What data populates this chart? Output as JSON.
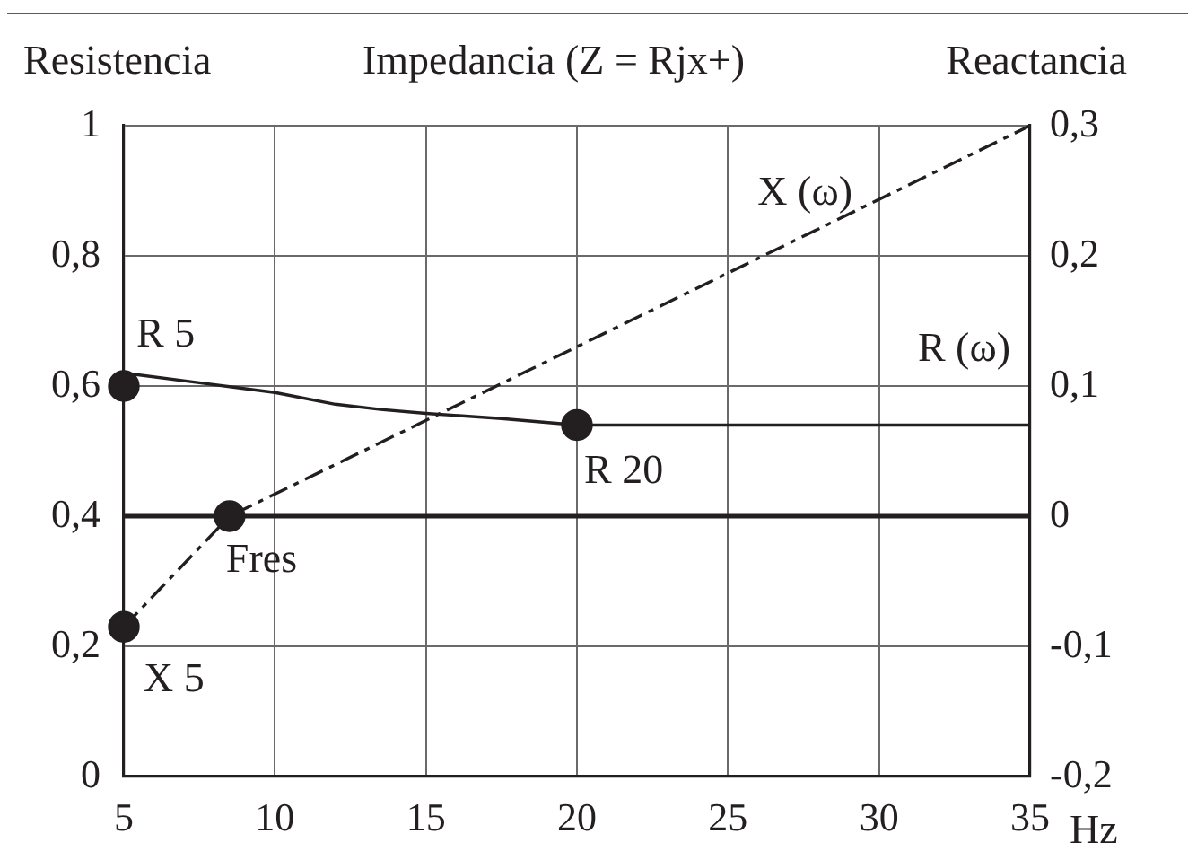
{
  "chart_data": {
    "type": "line",
    "title": "Impedancia (Z = Rjx+)",
    "xlabel": "Hz",
    "ylabel": "Resistencia",
    "y2label": "Reactancia",
    "xlim": [
      5,
      35
    ],
    "xticks": [
      5,
      10,
      15,
      20,
      25,
      30,
      35
    ],
    "ylim": [
      0,
      1
    ],
    "yticks": [
      0,
      {
        "value": 0.2,
        "label": "0,2"
      },
      {
        "value": 0.4,
        "label": "0,4"
      },
      {
        "value": 0.6,
        "label": "0,6"
      },
      {
        "value": 0.8,
        "label": "0,8"
      },
      1
    ],
    "y2lim": [
      -0.2,
      0.3
    ],
    "y2ticks": [
      {
        "value": -0.2,
        "label": "-0,2"
      },
      {
        "value": -0.1,
        "label": "-0,1"
      },
      0,
      {
        "value": 0.1,
        "label": "0,1"
      },
      {
        "value": 0.2,
        "label": "0,2"
      },
      {
        "value": 0.3,
        "label": "0,3"
      }
    ],
    "grid": true,
    "ref_lines": [
      {
        "axis": "y2",
        "value": 0,
        "color": "#231f20"
      }
    ],
    "series": [
      {
        "name": "R (ω)",
        "color": "#231f20",
        "x": [
          5,
          7.5,
          10,
          12,
          13.5,
          15,
          17.5,
          20,
          35
        ],
        "values": [
          0.62,
          0.605,
          0.59,
          0.572,
          0.564,
          0.558,
          0.55,
          0.54,
          0.54
        ],
        "marker": "none",
        "line_style": "solid"
      },
      {
        "name": "X (ω)",
        "color": "#231f20",
        "axis": "y2",
        "x": [
          5,
          8.5,
          35
        ],
        "values": [
          -0.085,
          0,
          0.3
        ],
        "marker": "none",
        "line_style": "dashed"
      },
      {
        "type": "scatter",
        "color": "#231f20",
        "x": [
          5,
          20
        ],
        "values": [
          0.6,
          0.54
        ],
        "marker": "circle"
      },
      {
        "type": "scatter",
        "color": "#231f20",
        "axis": "y2",
        "x": [
          5,
          8.5
        ],
        "values": [
          -0.085,
          0
        ],
        "marker": "circle"
      }
    ],
    "annotations": [
      {
        "text": "R 5",
        "x": 5,
        "y": 0.6
      },
      {
        "text": "R 20",
        "x": 20,
        "y": 0.54
      },
      {
        "text": "Fres",
        "x": 8.5,
        "y": 0.4
      },
      {
        "text": "X 5",
        "x": 5,
        "y": 0.23
      }
    ]
  }
}
